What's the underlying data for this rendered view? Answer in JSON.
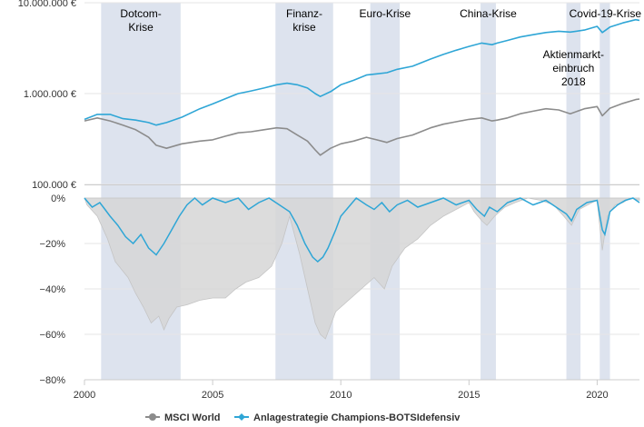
{
  "colors": {
    "msci": "#8c8c8c",
    "strategy": "#2fa6d6",
    "crisis_band": "#dde3ee",
    "drawdown_fill": "#d6d6d6",
    "grid": "#e6e6e6",
    "axis": "#cccccc"
  },
  "chart_data": [
    {
      "type": "line",
      "y_scale": "log",
      "ylim": [
        100000,
        10000000
      ],
      "xlim": [
        2000.0,
        2021.65
      ],
      "y_ticks": [
        {
          "value": 10000000,
          "label": "10.000.000 €"
        },
        {
          "value": 1000000,
          "label": "1.000.000 €"
        },
        {
          "value": 100000,
          "label": "100.000 €"
        }
      ],
      "crisis_periods": [
        {
          "label": [
            "Dotcom-",
            "Krise"
          ],
          "start": 2000.65,
          "end": 2003.75
        },
        {
          "label": [
            "Finanz-",
            "krise"
          ],
          "start": 2007.45,
          "end": 2009.7
        },
        {
          "label": [
            "Euro-Krise"
          ],
          "start": 2011.15,
          "end": 2012.3
        },
        {
          "label": [
            "China-Krise"
          ],
          "start": 2015.45,
          "end": 2016.05
        },
        {
          "label": [
            "Aktienmarkt-",
            "einbruch",
            "2018"
          ],
          "start": 2018.8,
          "end": 2019.35
        },
        {
          "label": [
            "Covid-19-Krise"
          ],
          "start": 2020.1,
          "end": 2020.5
        }
      ],
      "series": [
        {
          "name": "MSCI World",
          "x": [
            2000.0,
            2000.5,
            2001.0,
            2001.5,
            2002.0,
            2002.5,
            2002.8,
            2003.2,
            2003.8,
            2004.5,
            2005.0,
            2005.5,
            2006.0,
            2006.5,
            2007.0,
            2007.5,
            2007.9,
            2008.3,
            2008.7,
            2009.0,
            2009.2,
            2009.6,
            2010.0,
            2010.5,
            2011.0,
            2011.4,
            2011.8,
            2012.2,
            2012.8,
            2013.5,
            2014.0,
            2014.5,
            2015.0,
            2015.5,
            2015.9,
            2016.1,
            2016.5,
            2017.0,
            2017.5,
            2018.0,
            2018.5,
            2018.95,
            2019.5,
            2020.0,
            2020.2,
            2020.5,
            2021.0,
            2021.5,
            2021.65
          ],
          "y": [
            500000,
            540000,
            500000,
            450000,
            400000,
            330000,
            270000,
            250000,
            280000,
            300000,
            310000,
            340000,
            370000,
            380000,
            400000,
            420000,
            410000,
            350000,
            300000,
            240000,
            210000,
            250000,
            280000,
            300000,
            330000,
            310000,
            290000,
            320000,
            350000,
            420000,
            460000,
            490000,
            520000,
            540000,
            500000,
            510000,
            540000,
            600000,
            640000,
            680000,
            660000,
            600000,
            680000,
            720000,
            570000,
            690000,
            780000,
            860000,
            870000
          ]
        },
        {
          "name": "Anlagestrategie Champions-BOTSIdefensiv",
          "x": [
            2000.0,
            2000.5,
            2001.0,
            2001.5,
            2002.0,
            2002.5,
            2002.8,
            2003.2,
            2003.8,
            2004.5,
            2005.0,
            2005.5,
            2006.0,
            2006.5,
            2007.0,
            2007.5,
            2007.9,
            2008.3,
            2008.7,
            2009.0,
            2009.2,
            2009.6,
            2010.0,
            2010.5,
            2011.0,
            2011.4,
            2011.8,
            2012.2,
            2012.8,
            2013.5,
            2014.0,
            2014.5,
            2015.0,
            2015.5,
            2015.9,
            2016.1,
            2016.5,
            2017.0,
            2017.5,
            2018.0,
            2018.5,
            2018.95,
            2019.5,
            2020.0,
            2020.2,
            2020.5,
            2021.0,
            2021.5,
            2021.65
          ],
          "y": [
            520000,
            590000,
            590000,
            530000,
            510000,
            480000,
            450000,
            480000,
            550000,
            680000,
            770000,
            880000,
            1000000,
            1070000,
            1150000,
            1250000,
            1300000,
            1250000,
            1150000,
            1000000,
            930000,
            1050000,
            1250000,
            1400000,
            1600000,
            1650000,
            1700000,
            1850000,
            2000000,
            2400000,
            2700000,
            3000000,
            3300000,
            3600000,
            3450000,
            3600000,
            3850000,
            4200000,
            4450000,
            4700000,
            4850000,
            4750000,
            5000000,
            5500000,
            4700000,
            5400000,
            6000000,
            6500000,
            6400000
          ]
        }
      ]
    },
    {
      "type": "area",
      "ylim": [
        -80,
        0
      ],
      "xlim": [
        2000.0,
        2021.65
      ],
      "y_ticks": [
        {
          "value": 0,
          "label": "0%"
        },
        {
          "value": -20,
          "label": "−20%"
        },
        {
          "value": -40,
          "label": "−40%"
        },
        {
          "value": -60,
          "label": "−60%"
        },
        {
          "value": -80,
          "label": "−80%"
        }
      ],
      "x_ticks": [
        {
          "value": 2000,
          "label": "2000"
        },
        {
          "value": 2005,
          "label": "2005"
        },
        {
          "value": 2010,
          "label": "2010"
        },
        {
          "value": 2015,
          "label": "2015"
        },
        {
          "value": 2020,
          "label": "2020"
        }
      ],
      "series": [
        {
          "name": "MSCI World",
          "x": [
            2000.0,
            2000.1,
            2000.5,
            2000.9,
            2001.2,
            2001.7,
            2002.0,
            2002.3,
            2002.6,
            2002.9,
            2003.1,
            2003.3,
            2003.6,
            2004.0,
            2004.5,
            2005.0,
            2005.5,
            2005.9,
            2006.3,
            2006.8,
            2007.3,
            2007.7,
            2008.0,
            2008.4,
            2008.8,
            2009.0,
            2009.2,
            2009.4,
            2009.8,
            2010.3,
            2010.8,
            2011.3,
            2011.7,
            2012.0,
            2012.5,
            2013.0,
            2013.5,
            2014.0,
            2014.5,
            2015.0,
            2015.2,
            2015.5,
            2015.7,
            2016.0,
            2016.4,
            2016.8,
            2017.3,
            2017.8,
            2018.3,
            2018.7,
            2019.0,
            2019.3,
            2019.8,
            2020.0,
            2020.2,
            2020.4,
            2020.7,
            2021.0,
            2021.3,
            2021.65
          ],
          "y": [
            0,
            -3,
            -8,
            -18,
            -28,
            -35,
            -42,
            -48,
            -55,
            -52,
            -58,
            -53,
            -48,
            -47,
            -45,
            -44,
            -44,
            -40,
            -37,
            -35,
            -30,
            -20,
            -8,
            -25,
            -45,
            -55,
            -60,
            -62,
            -50,
            -45,
            -40,
            -35,
            -40,
            -30,
            -22,
            -18,
            -12,
            -8,
            -5,
            -2,
            -6,
            -10,
            -12,
            -8,
            -4,
            -2,
            0,
            -1,
            -3,
            -8,
            -12,
            -5,
            -2,
            -1,
            -23,
            -8,
            -3,
            -2,
            0,
            -1
          ]
        },
        {
          "name": "Anlagestrategie Champions-BOTSIdefensiv",
          "x": [
            2000.0,
            2000.3,
            2000.6,
            2000.8,
            2001.0,
            2001.3,
            2001.6,
            2001.9,
            2002.2,
            2002.5,
            2002.8,
            2003.1,
            2003.4,
            2003.7,
            2004.0,
            2004.3,
            2004.6,
            2005.0,
            2005.5,
            2006.0,
            2006.4,
            2006.8,
            2007.2,
            2007.6,
            2008.0,
            2008.3,
            2008.6,
            2008.9,
            2009.1,
            2009.3,
            2009.5,
            2009.8,
            2010.0,
            2010.3,
            2010.6,
            2011.0,
            2011.3,
            2011.6,
            2011.9,
            2012.2,
            2012.6,
            2013.0,
            2013.5,
            2014.0,
            2014.5,
            2015.0,
            2015.3,
            2015.6,
            2015.8,
            2016.1,
            2016.5,
            2017.0,
            2017.5,
            2018.0,
            2018.4,
            2018.8,
            2019.0,
            2019.2,
            2019.6,
            2020.0,
            2020.2,
            2020.3,
            2020.5,
            2020.8,
            2021.1,
            2021.4,
            2021.65
          ],
          "y": [
            0,
            -4,
            -2,
            -5,
            -8,
            -12,
            -17,
            -20,
            -16,
            -22,
            -25,
            -20,
            -14,
            -8,
            -3,
            0,
            -3,
            0,
            -2,
            0,
            -5,
            -2,
            0,
            -3,
            -6,
            -12,
            -20,
            -26,
            -28,
            -26,
            -22,
            -14,
            -8,
            -4,
            0,
            -3,
            -5,
            -2,
            -6,
            -3,
            -1,
            -4,
            -2,
            0,
            -3,
            -1,
            -5,
            -8,
            -4,
            -6,
            -2,
            0,
            -3,
            -1,
            -4,
            -7,
            -10,
            -5,
            -2,
            -1,
            -14,
            -16,
            -6,
            -3,
            -1,
            0,
            -2
          ]
        }
      ]
    }
  ],
  "legend": {
    "items": [
      {
        "label": "MSCI World",
        "color": "#8c8c8c"
      },
      {
        "label": "Anlagestrategie Champions-BOTSIdefensiv",
        "color": "#2fa6d6"
      }
    ]
  }
}
